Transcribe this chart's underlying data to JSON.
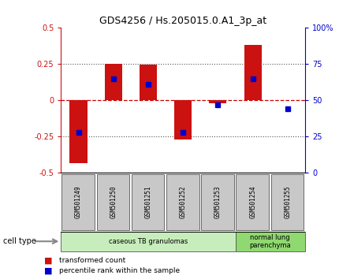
{
  "title": "GDS4256 / Hs.205015.0.A1_3p_at",
  "samples": [
    "GSM501249",
    "GSM501250",
    "GSM501251",
    "GSM501252",
    "GSM501253",
    "GSM501254",
    "GSM501255"
  ],
  "transformed_counts": [
    -0.43,
    0.25,
    0.245,
    -0.27,
    -0.018,
    0.385,
    0.002
  ],
  "percentile_ranks": [
    28,
    65,
    61,
    28,
    47,
    65,
    44
  ],
  "ylim_left": [
    -0.5,
    0.5
  ],
  "ylim_right": [
    0,
    100
  ],
  "yticks_left": [
    -0.5,
    -0.25,
    0.0,
    0.25,
    0.5
  ],
  "ytick_labels_left": [
    "-0.5",
    "-0.25",
    "0",
    "0.25",
    "0.5"
  ],
  "yticks_right": [
    0,
    25,
    50,
    75,
    100
  ],
  "ytick_labels_right": [
    "0",
    "25",
    "50",
    "75",
    "100%"
  ],
  "hlines_dotted": [
    -0.25,
    0.25
  ],
  "hline_zero_red": 0.0,
  "cell_type_label": "cell type",
  "cell_types": [
    {
      "label": "caseous TB granulomas",
      "start": 0,
      "end": 5,
      "color": "#c8edbc"
    },
    {
      "label": "normal lung\nparenchyma",
      "start": 5,
      "end": 7,
      "color": "#90d870"
    }
  ],
  "bar_color": "#cc1111",
  "marker_color": "#0000cc",
  "tick_bg_color": "#c8c8c8",
  "zero_line_color": "#cc0000",
  "dotted_line_color": "#555555",
  "legend_items": [
    {
      "color": "#cc1111",
      "label": "transformed count"
    },
    {
      "color": "#0000cc",
      "label": "percentile rank within the sample"
    }
  ],
  "bg_color": "#ffffff"
}
